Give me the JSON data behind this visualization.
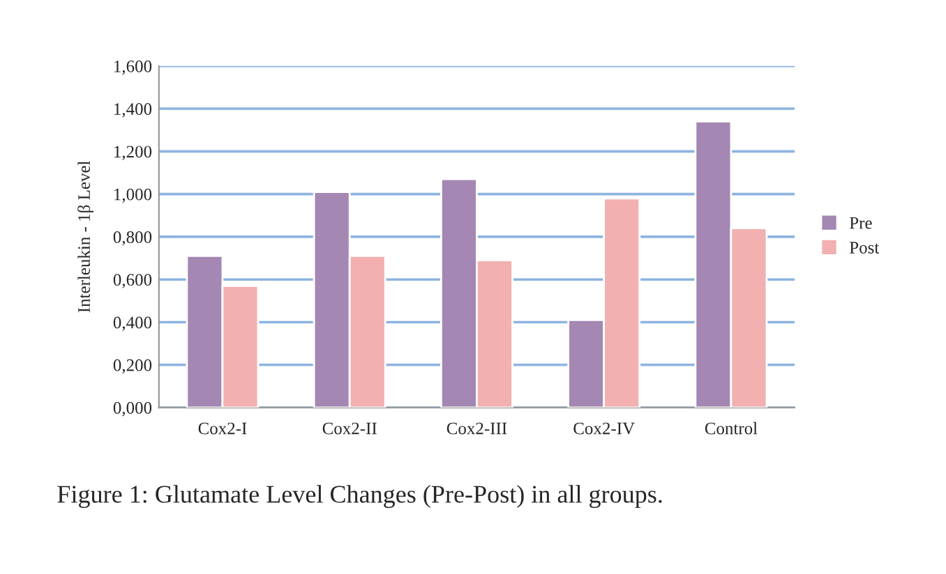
{
  "chart_data": {
    "type": "bar",
    "ylabel": "Interleukin - 1β Level",
    "categories": [
      "Cox2-I",
      "Cox2-II",
      "Cox2-III",
      "Cox2-IV",
      "Control"
    ],
    "series": [
      {
        "name": "Pre",
        "color": "#a487b3",
        "values": [
          0.71,
          1.01,
          1.07,
          0.41,
          1.34
        ]
      },
      {
        "name": "Post",
        "color": "#f2b0b0",
        "values": [
          0.57,
          0.71,
          0.69,
          0.98,
          0.84
        ]
      }
    ],
    "ylim": [
      0,
      1.6
    ],
    "yticks": [
      {
        "value": 0,
        "label": "0,000"
      },
      {
        "value": 0.2,
        "label": "0,200"
      },
      {
        "value": 0.4,
        "label": "0,400"
      },
      {
        "value": 0.6,
        "label": "0,600"
      },
      {
        "value": 0.8,
        "label": "0,800"
      },
      {
        "value": 1.0,
        "label": "1,000"
      },
      {
        "value": 1.2,
        "label": "1,200"
      },
      {
        "value": 1.4,
        "label": "1,400"
      },
      {
        "value": 1.6,
        "label": "1,600"
      }
    ],
    "grid": "y",
    "legend": "right",
    "annotations": [
      "Figure 1: Glutamate Level Changes (Pre-Post) in all groups."
    ]
  }
}
